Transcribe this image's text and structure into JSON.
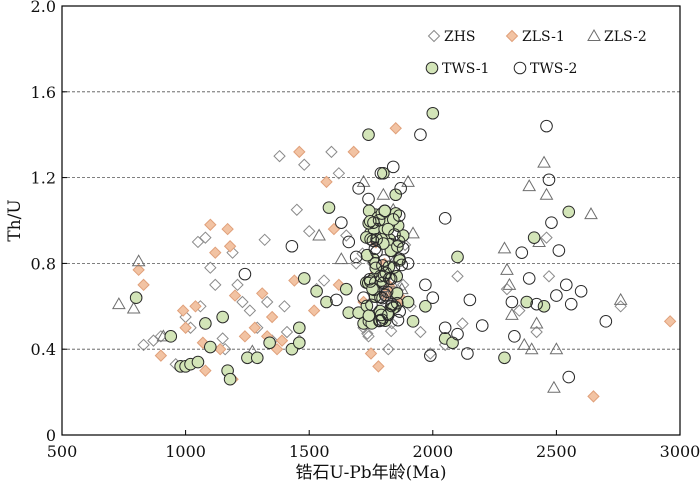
{
  "chart_data": {
    "type": "scatter",
    "xlabel": "锆石U-Pb年龄(Ma)",
    "ylabel": "Th/U",
    "xlim": [
      500,
      3000
    ],
    "ylim": [
      0,
      2.0
    ],
    "xticks": [
      "500",
      "1000",
      "1500",
      "2000",
      "2500",
      "3000"
    ],
    "yticks": [
      "0",
      "0.4",
      "0.8",
      "1.2",
      "1.6",
      "2.0"
    ],
    "xtick_values": [
      500,
      1000,
      1500,
      2000,
      2500,
      3000
    ],
    "ytick_values": [
      0,
      0.4,
      0.8,
      1.2,
      1.6,
      2.0
    ],
    "gridlines_y": [
      0.4,
      0.8,
      1.2,
      1.6
    ],
    "grid": "dashed horizontal",
    "legend_position": "top-right",
    "series": [
      {
        "name": "ZHS",
        "marker": "diamond",
        "fill": "none",
        "stroke": "#8a8a8a",
        "points": [
          [
            830,
            0.42
          ],
          [
            870,
            0.44
          ],
          [
            900,
            0.46
          ],
          [
            960,
            0.33
          ],
          [
            1000,
            0.55
          ],
          [
            1020,
            0.5
          ],
          [
            1050,
            0.9
          ],
          [
            1060,
            0.6
          ],
          [
            1080,
            0.92
          ],
          [
            1100,
            0.78
          ],
          [
            1120,
            0.7
          ],
          [
            1150,
            0.45
          ],
          [
            1160,
            0.4
          ],
          [
            1190,
            0.85
          ],
          [
            1210,
            0.7
          ],
          [
            1230,
            0.62
          ],
          [
            1260,
            0.58
          ],
          [
            1290,
            0.5
          ],
          [
            1320,
            0.91
          ],
          [
            1330,
            0.62
          ],
          [
            1350,
            0.44
          ],
          [
            1380,
            1.3
          ],
          [
            1400,
            0.6
          ],
          [
            1410,
            0.48
          ],
          [
            1450,
            1.05
          ],
          [
            1460,
            0.44
          ],
          [
            1480,
            1.26
          ],
          [
            1500,
            0.95
          ],
          [
            1530,
            0.68
          ],
          [
            1560,
            0.72
          ],
          [
            1590,
            1.32
          ],
          [
            1620,
            1.22
          ],
          [
            1650,
            0.93
          ],
          [
            1690,
            0.8
          ],
          [
            1720,
            0.5
          ],
          [
            1740,
            0.46
          ],
          [
            1780,
            0.58
          ],
          [
            1820,
            0.4
          ],
          [
            1850,
            0.65
          ],
          [
            1880,
            0.7
          ],
          [
            1910,
            0.6
          ],
          [
            1950,
            0.48
          ],
          [
            1990,
            0.38
          ],
          [
            2050,
            0.42
          ],
          [
            2100,
            0.74
          ],
          [
            2120,
            0.52
          ],
          [
            2300,
            0.68
          ],
          [
            2350,
            0.58
          ],
          [
            2420,
            0.48
          ],
          [
            2460,
            0.92
          ],
          [
            2470,
            0.74
          ],
          [
            2760,
            0.6
          ]
        ]
      },
      {
        "name": "ZLS-1",
        "marker": "diamond",
        "fill": "#f2c3a3",
        "stroke": "#e0a07a",
        "points": [
          [
            810,
            0.77
          ],
          [
            830,
            0.7
          ],
          [
            900,
            0.37
          ],
          [
            990,
            0.58
          ],
          [
            1000,
            0.5
          ],
          [
            1040,
            0.6
          ],
          [
            1070,
            0.43
          ],
          [
            1080,
            0.3
          ],
          [
            1100,
            0.98
          ],
          [
            1120,
            0.85
          ],
          [
            1140,
            0.4
          ],
          [
            1170,
            0.96
          ],
          [
            1180,
            0.88
          ],
          [
            1190,
            0.26
          ],
          [
            1200,
            0.65
          ],
          [
            1240,
            0.46
          ],
          [
            1280,
            0.5
          ],
          [
            1310,
            0.66
          ],
          [
            1330,
            0.46
          ],
          [
            1350,
            0.55
          ],
          [
            1370,
            0.4
          ],
          [
            1390,
            0.44
          ],
          [
            1440,
            0.72
          ],
          [
            1460,
            1.32
          ],
          [
            1520,
            0.58
          ],
          [
            1570,
            1.18
          ],
          [
            1600,
            0.96
          ],
          [
            1620,
            0.7
          ],
          [
            1680,
            1.32
          ],
          [
            1720,
            0.62
          ],
          [
            1750,
            0.38
          ],
          [
            1780,
            0.32
          ],
          [
            1800,
            0.9
          ],
          [
            1820,
            0.75
          ],
          [
            1850,
            1.43
          ],
          [
            1870,
            0.62
          ],
          [
            2650,
            0.18
          ],
          [
            2960,
            0.53
          ]
        ]
      },
      {
        "name": "ZLS-2",
        "marker": "triangle",
        "fill": "none",
        "stroke": "#6e6e6e",
        "points": [
          [
            730,
            0.61
          ],
          [
            790,
            0.59
          ],
          [
            810,
            0.81
          ],
          [
            910,
            0.46
          ],
          [
            1270,
            0.39
          ],
          [
            1540,
            0.93
          ],
          [
            1630,
            0.82
          ],
          [
            1720,
            1.18
          ],
          [
            1780,
            0.67
          ],
          [
            1800,
            1.12
          ],
          [
            1840,
            1.05
          ],
          [
            1900,
            1.18
          ],
          [
            1920,
            0.94
          ],
          [
            2290,
            0.87
          ],
          [
            2300,
            0.77
          ],
          [
            2310,
            0.7
          ],
          [
            2320,
            0.56
          ],
          [
            2370,
            0.42
          ],
          [
            2390,
            1.16
          ],
          [
            2400,
            0.4
          ],
          [
            2420,
            0.52
          ],
          [
            2430,
            0.9
          ],
          [
            2450,
            1.27
          ],
          [
            2460,
            1.12
          ],
          [
            2500,
            0.4
          ],
          [
            2490,
            0.22
          ],
          [
            2640,
            1.03
          ],
          [
            2760,
            0.63
          ]
        ]
      },
      {
        "name": "TWS-1",
        "marker": "circle",
        "fill": "#d3e5b8",
        "stroke": "#2a2a2a",
        "points": [
          [
            800,
            0.64
          ],
          [
            940,
            0.46
          ],
          [
            980,
            0.32
          ],
          [
            1000,
            0.32
          ],
          [
            1020,
            0.33
          ],
          [
            1050,
            0.34
          ],
          [
            1080,
            0.52
          ],
          [
            1100,
            0.41
          ],
          [
            1150,
            0.55
          ],
          [
            1170,
            0.3
          ],
          [
            1180,
            0.26
          ],
          [
            1250,
            0.36
          ],
          [
            1290,
            0.36
          ],
          [
            1340,
            0.43
          ],
          [
            1430,
            0.4
          ],
          [
            1460,
            0.5
          ],
          [
            1460,
            0.43
          ],
          [
            1480,
            0.73
          ],
          [
            1530,
            0.67
          ],
          [
            1570,
            0.62
          ],
          [
            1580,
            1.06
          ],
          [
            1650,
            0.68
          ],
          [
            1660,
            0.57
          ],
          [
            1700,
            0.57
          ],
          [
            1720,
            0.52
          ],
          [
            1740,
            1.4
          ],
          [
            1760,
            0.82
          ],
          [
            1780,
            0.72
          ],
          [
            1800,
            1.22
          ],
          [
            1830,
            0.87
          ],
          [
            1850,
            1.12
          ],
          [
            1880,
            0.93
          ],
          [
            1900,
            0.62
          ],
          [
            1920,
            0.53
          ],
          [
            1970,
            0.6
          ],
          [
            2000,
            1.5
          ],
          [
            2050,
            0.45
          ],
          [
            2080,
            0.43
          ],
          [
            2100,
            0.83
          ],
          [
            2290,
            0.36
          ],
          [
            2380,
            0.62
          ],
          [
            2410,
            0.92
          ],
          [
            2450,
            0.6
          ],
          [
            2550,
            1.04
          ]
        ]
      },
      {
        "name": "TWS-2",
        "marker": "circle",
        "fill": "none",
        "stroke": "#2a2a2a",
        "points": [
          [
            1240,
            0.75
          ],
          [
            1430,
            0.88
          ],
          [
            1610,
            0.63
          ],
          [
            1630,
            0.99
          ],
          [
            1660,
            0.9
          ],
          [
            1690,
            0.83
          ],
          [
            1700,
            1.15
          ],
          [
            1720,
            0.64
          ],
          [
            1740,
            1.1
          ],
          [
            1760,
            0.99
          ],
          [
            1790,
            1.22
          ],
          [
            1800,
            0.71
          ],
          [
            1820,
            0.56
          ],
          [
            1840,
            1.25
          ],
          [
            1870,
            1.15
          ],
          [
            1880,
            0.87
          ],
          [
            1900,
            0.8
          ],
          [
            1950,
            1.4
          ],
          [
            1970,
            0.7
          ],
          [
            1990,
            0.37
          ],
          [
            2000,
            0.64
          ],
          [
            2050,
            1.01
          ],
          [
            2050,
            0.5
          ],
          [
            2100,
            0.47
          ],
          [
            2140,
            0.38
          ],
          [
            2150,
            0.63
          ],
          [
            2200,
            0.51
          ],
          [
            2320,
            0.62
          ],
          [
            2330,
            0.46
          ],
          [
            2360,
            0.85
          ],
          [
            2390,
            0.73
          ],
          [
            2420,
            0.61
          ],
          [
            2460,
            1.44
          ],
          [
            2470,
            1.19
          ],
          [
            2480,
            0.99
          ],
          [
            2500,
            0.65
          ],
          [
            2510,
            0.86
          ],
          [
            2540,
            0.7
          ],
          [
            2550,
            0.27
          ],
          [
            2560,
            0.61
          ],
          [
            2600,
            0.67
          ],
          [
            2700,
            0.53
          ]
        ]
      }
    ],
    "clusters": [
      {
        "series": 3,
        "x_range": [
          1730,
          1870
        ],
        "y_range": [
          0.52,
          1.05
        ],
        "count": 60
      },
      {
        "series": 4,
        "x_range": [
          1740,
          1880
        ],
        "y_range": [
          0.52,
          1.05
        ],
        "count": 35
      },
      {
        "series": 2,
        "x_range": [
          1760,
          1880
        ],
        "y_range": [
          0.55,
          0.95
        ],
        "count": 12
      },
      {
        "series": 0,
        "x_range": [
          1700,
          1900
        ],
        "y_range": [
          0.45,
          0.9
        ],
        "count": 12
      },
      {
        "series": 1,
        "x_range": [
          1750,
          1880
        ],
        "y_range": [
          0.55,
          1.0
        ],
        "count": 8
      }
    ]
  }
}
